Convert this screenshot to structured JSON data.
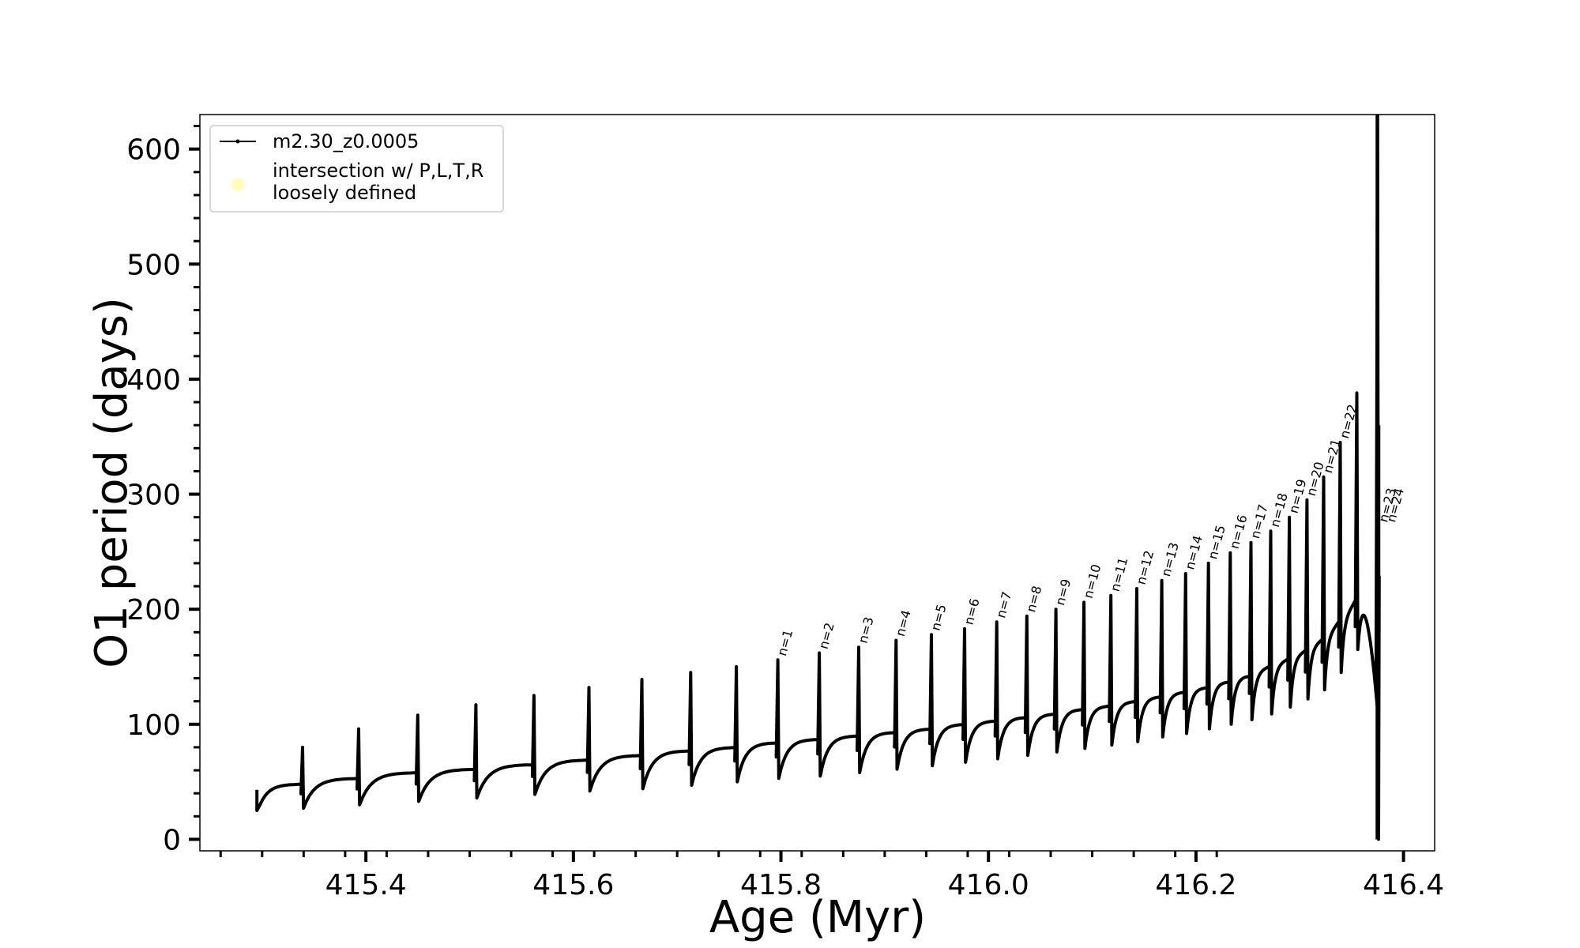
{
  "chart_data": {
    "type": "line",
    "xlabel": "Age (Myr)",
    "ylabel": "O1 period (days)",
    "xlim": [
      415.24,
      416.43
    ],
    "ylim": [
      -10,
      630
    ],
    "xticks": [
      415.4,
      415.6,
      415.8,
      416.0,
      416.2,
      416.4
    ],
    "xtick_labels": [
      "415.4",
      "415.6",
      "415.8",
      "416.0",
      "416.2",
      "416.4"
    ],
    "yticks": [
      0,
      100,
      200,
      300,
      400,
      500,
      600
    ],
    "ytick_labels": [
      "0",
      "100",
      "200",
      "300",
      "400",
      "500",
      "600"
    ],
    "grid": false,
    "legend_position": "top-left",
    "legend": [
      {
        "label": "m2.30_z0.0005",
        "color": "#000000",
        "marker": "line-dot"
      },
      {
        "label": "intersection w/ P,L,T,R",
        "label2": "loosely defined",
        "color": "#ffffb3",
        "marker": "circle"
      }
    ],
    "series": [
      {
        "name": "m2.30_z0.0005",
        "color": "#000000",
        "pulses": [
          {
            "x": 415.295,
            "min": 25,
            "plateau": 48,
            "peak": 43
          },
          {
            "x": 415.339,
            "min": 27,
            "plateau": 53,
            "peak": 80
          },
          {
            "x": 415.393,
            "min": 30,
            "plateau": 58,
            "peak": 96
          },
          {
            "x": 415.45,
            "min": 33,
            "plateau": 61,
            "peak": 108
          },
          {
            "x": 415.506,
            "min": 36,
            "plateau": 65,
            "peak": 117
          },
          {
            "x": 415.562,
            "min": 39,
            "plateau": 69,
            "peak": 125
          },
          {
            "x": 415.615,
            "min": 42,
            "plateau": 73,
            "peak": 132
          },
          {
            "x": 415.666,
            "min": 44,
            "plateau": 77,
            "peak": 139
          },
          {
            "x": 415.713,
            "min": 47,
            "plateau": 80,
            "peak": 145
          },
          {
            "x": 415.757,
            "min": 50,
            "plateau": 84,
            "peak": 150
          },
          {
            "x": 415.797,
            "min": 53,
            "plateau": 87,
            "peak": 156,
            "label": "n=1"
          },
          {
            "x": 415.837,
            "min": 55,
            "plateau": 90,
            "peak": 162,
            "label": "n=2"
          },
          {
            "x": 415.875,
            "min": 58,
            "plateau": 93,
            "peak": 167,
            "label": "n=3"
          },
          {
            "x": 415.911,
            "min": 61,
            "plateau": 96,
            "peak": 173,
            "label": "n=4"
          },
          {
            "x": 415.945,
            "min": 64,
            "plateau": 100,
            "peak": 178,
            "label": "n=5"
          },
          {
            "x": 415.977,
            "min": 67,
            "plateau": 103,
            "peak": 183,
            "label": "n=6"
          },
          {
            "x": 416.008,
            "min": 70,
            "plateau": 106,
            "peak": 189,
            "label": "n=7"
          },
          {
            "x": 416.037,
            "min": 73,
            "plateau": 109,
            "peak": 194,
            "label": "n=8"
          },
          {
            "x": 416.065,
            "min": 76,
            "plateau": 113,
            "peak": 200,
            "label": "n=9"
          },
          {
            "x": 416.092,
            "min": 79,
            "plateau": 116,
            "peak": 206,
            "label": "n=10"
          },
          {
            "x": 416.118,
            "min": 82,
            "plateau": 120,
            "peak": 212,
            "label": "n=11"
          },
          {
            "x": 416.143,
            "min": 85,
            "plateau": 124,
            "peak": 218,
            "label": "n=12"
          },
          {
            "x": 416.167,
            "min": 89,
            "plateau": 128,
            "peak": 225,
            "label": "n=13"
          },
          {
            "x": 416.19,
            "min": 92,
            "plateau": 132,
            "peak": 231,
            "label": "n=14"
          },
          {
            "x": 416.212,
            "min": 96,
            "plateau": 137,
            "peak": 240,
            "label": "n=15"
          },
          {
            "x": 416.233,
            "min": 100,
            "plateau": 142,
            "peak": 249,
            "label": "n=16"
          },
          {
            "x": 416.253,
            "min": 104,
            "plateau": 148,
            "peak": 258,
            "label": "n=17"
          },
          {
            "x": 416.272,
            "min": 109,
            "plateau": 154,
            "peak": 268,
            "label": "n=18"
          },
          {
            "x": 416.29,
            "min": 115,
            "plateau": 161,
            "peak": 280,
            "label": "n=19"
          },
          {
            "x": 416.307,
            "min": 122,
            "plateau": 170,
            "peak": 295,
            "label": "n=20"
          },
          {
            "x": 416.323,
            "min": 130,
            "plateau": 182,
            "peak": 315,
            "label": "n=21"
          },
          {
            "x": 416.339,
            "min": 145,
            "plateau": 198,
            "peak": 345,
            "label": "n=22"
          },
          {
            "x": 416.355,
            "min": 165,
            "plateau": 215,
            "peak": 388
          },
          {
            "x": 416.375,
            "min": 0,
            "plateau": 228,
            "peak": 630,
            "label": "n=23",
            "label2": "n=24"
          }
        ]
      }
    ]
  }
}
